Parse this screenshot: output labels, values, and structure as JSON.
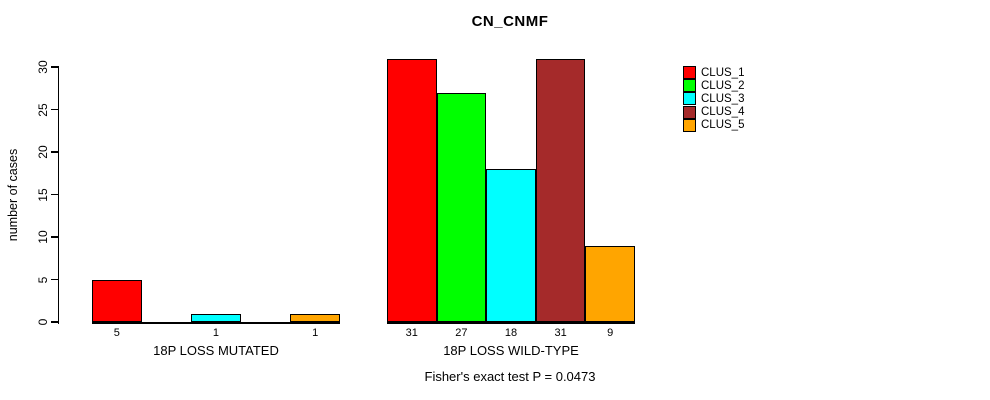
{
  "chart_data": {
    "type": "bar",
    "title": "CN_CNMF",
    "ylabel": "number of cases",
    "ylim": [
      0,
      30
    ],
    "yticks": [
      0,
      5,
      10,
      15,
      20,
      25,
      30
    ],
    "grid": false,
    "legend_position": "right",
    "series": [
      {
        "name": "CLUS_1",
        "color": "#FF0000"
      },
      {
        "name": "CLUS_2",
        "color": "#00FF00"
      },
      {
        "name": "CLUS_3",
        "color": "#00FFFF"
      },
      {
        "name": "CLUS_4",
        "color": "#A52A2A"
      },
      {
        "name": "CLUS_5",
        "color": "#FFA500"
      }
    ],
    "groups": [
      {
        "label": "18P LOSS MUTATED",
        "values": [
          5,
          0,
          1,
          0,
          1
        ]
      },
      {
        "label": "18P LOSS WILD-TYPE",
        "values": [
          31,
          27,
          18,
          31,
          9
        ]
      }
    ],
    "bar_value_labels": true,
    "annotation": "Fisher's exact test P = 0.0473"
  },
  "colors": {
    "background": "#FFFFFF",
    "axis": "#000000",
    "text": "#000000"
  }
}
